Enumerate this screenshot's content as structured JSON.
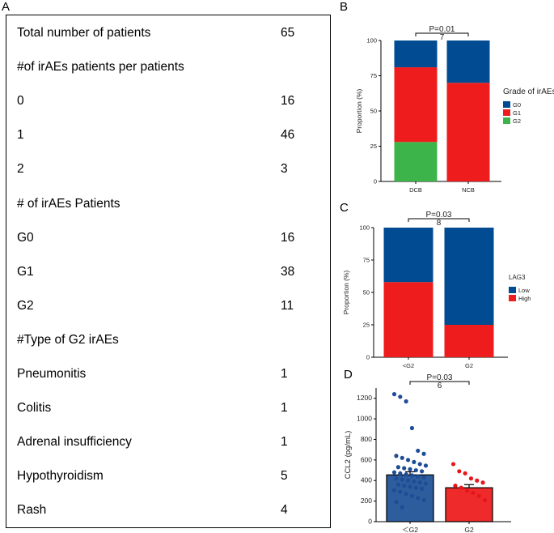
{
  "panel_labels": {
    "a": "A",
    "b": "B",
    "c": "C",
    "d": "D"
  },
  "table": {
    "rows": [
      {
        "label": "Total number of patients",
        "value": "65"
      },
      {
        "label": "#of irAEs patients per patients",
        "value": ""
      },
      {
        "label": "0",
        "value": "16"
      },
      {
        "label": "1",
        "value": "46"
      },
      {
        "label": "2",
        "value": "3"
      },
      {
        "label": "# of irAEs Patients",
        "value": ""
      },
      {
        "label": "G0",
        "value": "16"
      },
      {
        "label": "G1",
        "value": "38"
      },
      {
        "label": "G2",
        "value": "11"
      },
      {
        "label": "#Type of G2 irAEs",
        "value": ""
      },
      {
        "label": "Pneumonitis",
        "value": "1"
      },
      {
        "label": "Colitis",
        "value": "1"
      },
      {
        "label": "Adrenal insufficiency",
        "value": "1"
      },
      {
        "label": "Hypothyroidism",
        "value": "5"
      },
      {
        "label": "Rash",
        "value": "4"
      }
    ]
  },
  "chart_data": [
    {
      "panel": "B",
      "type": "bar",
      "stacked": true,
      "categories": [
        "DCB",
        "NCB"
      ],
      "ylabel": "Proportion (%)",
      "ylim": [
        0,
        100
      ],
      "yticks": [
        "0",
        "25",
        "50",
        "75",
        "100"
      ],
      "legend_title": "Grade of irAEs",
      "series": [
        {
          "name": "G2",
          "color": "#3cb44a",
          "values": [
            28,
            0
          ]
        },
        {
          "name": "G1",
          "color": "#ee1c1c",
          "values": [
            53,
            70
          ]
        },
        {
          "name": "G0",
          "color": "#004b91",
          "values": [
            19,
            30
          ]
        }
      ],
      "legend_order": [
        "G0",
        "G1",
        "G2"
      ],
      "annotation": "P=0.01",
      "annotation_note": "7"
    },
    {
      "panel": "C",
      "type": "bar",
      "stacked": true,
      "categories": [
        "<G2",
        "G2"
      ],
      "ylabel": "Proportion (%)",
      "ylim": [
        0,
        100
      ],
      "yticks": [
        "0",
        "25",
        "50",
        "75",
        "100"
      ],
      "legend_title": "LAG3",
      "series": [
        {
          "name": "High",
          "color": "#ee1c1c",
          "values": [
            58,
            25
          ]
        },
        {
          "name": "Low",
          "color": "#004b91",
          "values": [
            42,
            75
          ]
        }
      ],
      "legend_order": [
        "Low",
        "High"
      ],
      "annotation": "P=0.03",
      "annotation_note": "8"
    },
    {
      "panel": "D",
      "type": "bar",
      "categories": [
        "＜G2",
        "G2"
      ],
      "ylabel": "CCL2 (pg/mL)",
      "ylim": [
        0,
        1300
      ],
      "yticks": [
        "0",
        "200",
        "400",
        "600",
        "800",
        "1000",
        "1200"
      ],
      "values": [
        455,
        330
      ],
      "errors": [
        30,
        30
      ],
      "colors": [
        "#2e5d9e",
        "#ee2a2a"
      ],
      "point_colors": [
        "#1e4d95",
        "#e8151c"
      ],
      "points": [
        [
          1240,
          1215,
          1170,
          910,
          690,
          660,
          640,
          620,
          600,
          580,
          560,
          545,
          530,
          520,
          510,
          500,
          490,
          480,
          470,
          460,
          450,
          440,
          430,
          420,
          410,
          400,
          390,
          380,
          370,
          360,
          350,
          340,
          330,
          320,
          305,
          290,
          270,
          250,
          230,
          210,
          190,
          140
        ],
        [
          560,
          490,
          470,
          420,
          400,
          380,
          350,
          330,
          300,
          280,
          250,
          210
        ]
      ],
      "annotation": "P=0.03",
      "annotation_note": "6"
    }
  ]
}
